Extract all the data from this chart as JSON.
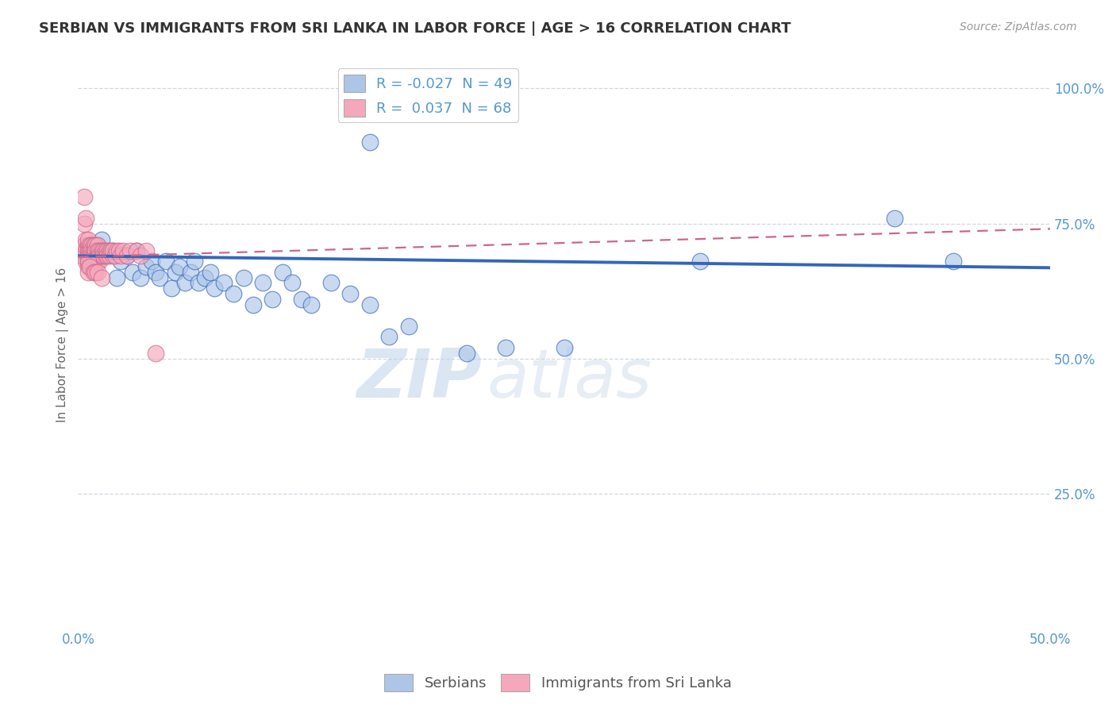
{
  "title": "SERBIAN VS IMMIGRANTS FROM SRI LANKA IN LABOR FORCE | AGE > 16 CORRELATION CHART",
  "source": "Source: ZipAtlas.com",
  "ylabel": "In Labor Force | Age > 16",
  "xlim": [
    0.0,
    0.5
  ],
  "ylim": [
    0.0,
    1.05
  ],
  "yticks_right": [
    0.25,
    0.5,
    0.75,
    1.0
  ],
  "ytickslabels_right": [
    "25.0%",
    "50.0%",
    "75.0%",
    "100.0%"
  ],
  "blue_R": -0.027,
  "blue_N": 49,
  "pink_R": 0.037,
  "pink_N": 68,
  "blue_color": "#adc6e8",
  "pink_color": "#f5a8bc",
  "blue_line_color": "#3366bb",
  "pink_line_color": "#cc6688",
  "watermark_zip": "ZIP",
  "watermark_atlas": "atlas",
  "legend_blue_label": "R = -0.027  N = 49",
  "legend_pink_label": "R =  0.037  N = 68",
  "blue_scatter_x": [
    0.005,
    0.008,
    0.01,
    0.012,
    0.015,
    0.018,
    0.02,
    0.022,
    0.025,
    0.028,
    0.03,
    0.032,
    0.035,
    0.038,
    0.04,
    0.042,
    0.045,
    0.048,
    0.05,
    0.052,
    0.055,
    0.058,
    0.06,
    0.062,
    0.065,
    0.068,
    0.07,
    0.075,
    0.08,
    0.085,
    0.09,
    0.095,
    0.1,
    0.105,
    0.11,
    0.115,
    0.12,
    0.13,
    0.14,
    0.15,
    0.16,
    0.17,
    0.2,
    0.22,
    0.25,
    0.15,
    0.32,
    0.42,
    0.45
  ],
  "blue_scatter_y": [
    0.685,
    0.7,
    0.71,
    0.72,
    0.695,
    0.7,
    0.65,
    0.68,
    0.69,
    0.66,
    0.7,
    0.65,
    0.67,
    0.68,
    0.66,
    0.65,
    0.68,
    0.63,
    0.66,
    0.67,
    0.64,
    0.66,
    0.68,
    0.64,
    0.65,
    0.66,
    0.63,
    0.64,
    0.62,
    0.65,
    0.6,
    0.64,
    0.61,
    0.66,
    0.64,
    0.61,
    0.6,
    0.64,
    0.62,
    0.6,
    0.54,
    0.56,
    0.51,
    0.52,
    0.52,
    0.9,
    0.68,
    0.76,
    0.68
  ],
  "pink_scatter_x": [
    0.002,
    0.003,
    0.003,
    0.004,
    0.004,
    0.004,
    0.005,
    0.005,
    0.005,
    0.005,
    0.005,
    0.005,
    0.005,
    0.005,
    0.006,
    0.006,
    0.006,
    0.006,
    0.007,
    0.007,
    0.007,
    0.007,
    0.008,
    0.008,
    0.008,
    0.008,
    0.009,
    0.009,
    0.01,
    0.01,
    0.01,
    0.01,
    0.011,
    0.011,
    0.011,
    0.012,
    0.012,
    0.013,
    0.013,
    0.014,
    0.014,
    0.015,
    0.015,
    0.016,
    0.016,
    0.017,
    0.018,
    0.018,
    0.019,
    0.02,
    0.021,
    0.022,
    0.023,
    0.025,
    0.027,
    0.03,
    0.032,
    0.035,
    0.003,
    0.003,
    0.004,
    0.005,
    0.006,
    0.008,
    0.009,
    0.01,
    0.012,
    0.04
  ],
  "pink_scatter_y": [
    0.69,
    0.7,
    0.71,
    0.72,
    0.7,
    0.68,
    0.7,
    0.71,
    0.72,
    0.7,
    0.69,
    0.68,
    0.67,
    0.66,
    0.71,
    0.7,
    0.69,
    0.68,
    0.71,
    0.7,
    0.69,
    0.68,
    0.71,
    0.7,
    0.69,
    0.68,
    0.71,
    0.7,
    0.71,
    0.7,
    0.69,
    0.68,
    0.7,
    0.69,
    0.68,
    0.7,
    0.69,
    0.7,
    0.69,
    0.7,
    0.69,
    0.7,
    0.69,
    0.7,
    0.69,
    0.7,
    0.69,
    0.7,
    0.69,
    0.7,
    0.7,
    0.69,
    0.7,
    0.69,
    0.7,
    0.7,
    0.69,
    0.7,
    0.8,
    0.75,
    0.76,
    0.68,
    0.67,
    0.66,
    0.66,
    0.66,
    0.65,
    0.51
  ],
  "background_color": "#ffffff",
  "grid_color": "#d0d8e0",
  "axis_color": "#5599cc",
  "title_color": "#333333",
  "title_fontsize": 13,
  "blue_trendline_y0": 0.69,
  "blue_trendline_y1": 0.668,
  "pink_trendline_y0": 0.688,
  "pink_trendline_y1": 0.74
}
